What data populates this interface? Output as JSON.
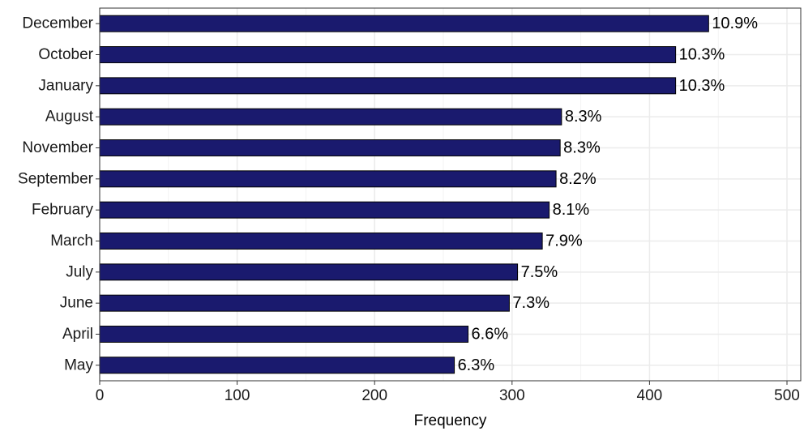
{
  "chart_data": {
    "type": "bar",
    "orientation": "horizontal",
    "categories": [
      "December",
      "October",
      "January",
      "August",
      "November",
      "September",
      "February",
      "March",
      "July",
      "June",
      "April",
      "May"
    ],
    "values": [
      443,
      419,
      419,
      336,
      335,
      332,
      327,
      322,
      304,
      298,
      268,
      258
    ],
    "labels": [
      "10.9%",
      "10.3%",
      "10.3%",
      "8.3%",
      "8.3%",
      "8.2%",
      "8.1%",
      "7.9%",
      "7.5%",
      "7.3%",
      "6.6%",
      "6.3%"
    ],
    "xlabel": "Frequency",
    "ylabel": "",
    "xlim": [
      0,
      500
    ],
    "xticks": [
      0,
      100,
      200,
      300,
      400,
      500
    ],
    "grid": true,
    "colors": {
      "bar_fill": "#1a1a6e",
      "bar_stroke": "#000000",
      "grid": "#ebebeb",
      "panel_border": "#333333"
    }
  }
}
